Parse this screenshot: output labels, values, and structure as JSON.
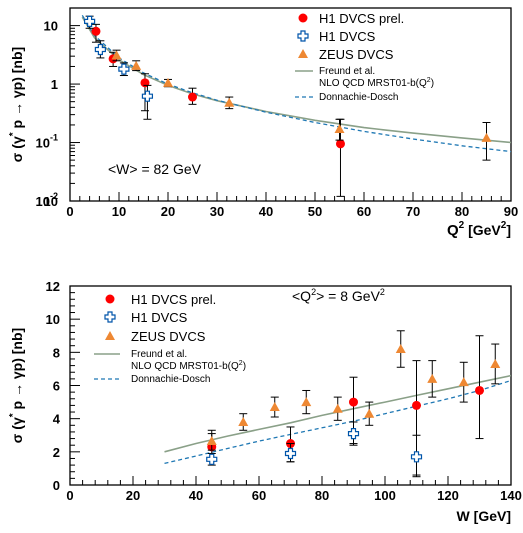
{
  "chart_data": [
    {
      "type": "scatter",
      "xlabel": "Q",
      "xlabel_sup": "2",
      "xlabel_unit": "[GeV",
      "xlabel_unit_sup": "2",
      "xlabel_unit_close": "]",
      "ylabel": "σ (γ p → γp) [nb]",
      "ylabel_star": "*",
      "xlim": [
        0,
        90
      ],
      "ylim": [
        0.01,
        20
      ],
      "yscale": "log",
      "xticks": [
        0,
        10,
        20,
        30,
        40,
        50,
        60,
        70,
        80,
        90
      ],
      "xtick_labels": [
        "0",
        "10",
        "20",
        "30",
        "40",
        "50",
        "60",
        "70",
        "80",
        "90"
      ],
      "yticks": [
        {
          "base": "10",
          "exp": "",
          "value": 10
        },
        {
          "base": "1",
          "exp": "",
          "value": 1
        },
        {
          "base": "10",
          "exp": "-1",
          "value": 0.1
        },
        {
          "base": "10",
          "exp": "-2",
          "value": 0.01
        }
      ],
      "ytick_bottom": {
        "base": "10",
        "exp": "",
        "value": 0.01
      },
      "annotation": "<W> = 82 GeV",
      "legend_position": "top-right",
      "series": [
        {
          "name": "H1 DVCS prel.",
          "marker": "circle",
          "color": "#ff0000",
          "points": [
            {
              "x": 5.3,
              "y": 8.0,
              "lo": 5.2,
              "hi": 10.5
            },
            {
              "x": 8.8,
              "y": 2.7,
              "lo": 2.0,
              "hi": 3.5
            },
            {
              "x": 15.3,
              "y": 1.05,
              "lo": 0.35,
              "hi": 1.5
            },
            {
              "x": 25.0,
              "y": 0.6,
              "lo": 0.45,
              "hi": 0.85
            },
            {
              "x": 55.2,
              "y": 0.095,
              "lo": 0.012,
              "hi": 0.25
            }
          ]
        },
        {
          "name": "H1 DVCS",
          "marker": "cross",
          "color": "#0055aa",
          "points": [
            {
              "x": 4.0,
              "y": 11.8,
              "lo": 9.0,
              "hi": 14.5
            },
            {
              "x": 6.2,
              "y": 3.9,
              "lo": 2.8,
              "hi": 5.5
            },
            {
              "x": 11.0,
              "y": 1.8,
              "lo": 1.4,
              "hi": 2.3
            },
            {
              "x": 15.8,
              "y": 0.62,
              "lo": 0.25,
              "hi": 0.95
            }
          ]
        },
        {
          "name": "ZEUS DVCS",
          "marker": "triangle",
          "color": "#ee8833",
          "points": [
            {
              "x": 9.5,
              "y": 3.1,
              "lo": 2.5,
              "hi": 3.8
            },
            {
              "x": 13.5,
              "y": 2.05,
              "lo": 1.7,
              "hi": 2.5
            },
            {
              "x": 20.0,
              "y": 1.05,
              "lo": 0.9,
              "hi": 1.2
            },
            {
              "x": 32.5,
              "y": 0.48,
              "lo": 0.38,
              "hi": 0.6
            },
            {
              "x": 55.0,
              "y": 0.17,
              "lo": 0.11,
              "hi": 0.25
            },
            {
              "x": 85.0,
              "y": 0.12,
              "lo": 0.05,
              "hi": 0.22
            }
          ]
        }
      ],
      "curves": [
        {
          "name": "Freund et al.",
          "name2": "NLO QCD MRST01-b(Q",
          "name2_sup": "2",
          "name2_close": ")",
          "style": "solid",
          "color": "#8aa088",
          "x": [
            2.5,
            5,
            10,
            15,
            20,
            25,
            30,
            40,
            50,
            60,
            70,
            80,
            90
          ],
          "y": [
            14,
            6.2,
            2.6,
            1.45,
            0.95,
            0.68,
            0.52,
            0.34,
            0.24,
            0.18,
            0.145,
            0.12,
            0.1
          ]
        },
        {
          "name": "Donnachie-Dosch",
          "style": "dashed",
          "color": "#1f78b4",
          "x": [
            2.5,
            5,
            10,
            15,
            20,
            25,
            30,
            40,
            50,
            60,
            70,
            80,
            90
          ],
          "y": [
            15,
            6.8,
            2.8,
            1.55,
            1.0,
            0.71,
            0.53,
            0.33,
            0.22,
            0.155,
            0.115,
            0.088,
            0.07
          ]
        }
      ]
    },
    {
      "type": "scatter",
      "xlabel": "W [GeV]",
      "ylabel": "σ (γ p → γp) [nb]",
      "ylabel_star": "*",
      "xlim": [
        0,
        140
      ],
      "ylim": [
        0,
        12
      ],
      "yscale": "linear",
      "xticks": [
        0,
        20,
        40,
        60,
        80,
        100,
        120,
        140
      ],
      "xtick_labels": [
        "0",
        "20",
        "40",
        "60",
        "80",
        "100",
        "120",
        "140"
      ],
      "yticks_values": [
        0,
        2,
        4,
        6,
        8,
        10,
        12
      ],
      "ytick_labels": [
        "0",
        "2",
        "4",
        "6",
        "8",
        "10",
        "12"
      ],
      "annotation": "<Q",
      "annotation_sup": "2",
      "annotation_rest": "> = 8 GeV",
      "annotation_sup2": "2",
      "legend_position": "top-left",
      "series": [
        {
          "name": "H1 DVCS prel.",
          "marker": "circle",
          "color": "#ff0000",
          "points": [
            {
              "x": 45,
              "y": 2.3,
              "lo": 1.5,
              "hi": 3.1
            },
            {
              "x": 70,
              "y": 2.5,
              "lo": 1.4,
              "hi": 3.5
            },
            {
              "x": 90,
              "y": 5.0,
              "lo": 2.5,
              "hi": 6.5
            },
            {
              "x": 110,
              "y": 4.8,
              "lo": 0.5,
              "hi": 7.5
            },
            {
              "x": 130,
              "y": 5.7,
              "lo": 2.8,
              "hi": 9.0
            }
          ]
        },
        {
          "name": "H1 DVCS",
          "marker": "cross",
          "color": "#0055aa",
          "points": [
            {
              "x": 45,
              "y": 1.55,
              "lo": 1.2,
              "hi": 1.9
            },
            {
              "x": 70,
              "y": 1.9,
              "lo": 1.4,
              "hi": 2.5
            },
            {
              "x": 90,
              "y": 3.1,
              "lo": 2.4,
              "hi": 3.8
            },
            {
              "x": 110,
              "y": 1.7,
              "lo": 0.6,
              "hi": 3.0
            }
          ]
        },
        {
          "name": "ZEUS DVCS",
          "marker": "triangle",
          "color": "#ee8833",
          "points": [
            {
              "x": 45,
              "y": 2.65,
              "lo": 2.1,
              "hi": 3.3
            },
            {
              "x": 55,
              "y": 3.8,
              "lo": 3.3,
              "hi": 4.3
            },
            {
              "x": 65,
              "y": 4.7,
              "lo": 4.1,
              "hi": 5.3
            },
            {
              "x": 75,
              "y": 5.0,
              "lo": 4.3,
              "hi": 5.7
            },
            {
              "x": 85,
              "y": 4.6,
              "lo": 3.9,
              "hi": 5.3
            },
            {
              "x": 95,
              "y": 4.3,
              "lo": 3.6,
              "hi": 5.0
            },
            {
              "x": 105,
              "y": 8.2,
              "lo": 7.1,
              "hi": 9.3
            },
            {
              "x": 115,
              "y": 6.4,
              "lo": 5.3,
              "hi": 7.5
            },
            {
              "x": 125,
              "y": 6.2,
              "lo": 5.0,
              "hi": 7.4
            },
            {
              "x": 135,
              "y": 7.3,
              "lo": 6.1,
              "hi": 8.5
            }
          ]
        }
      ],
      "curves": [
        {
          "name": "Freund et al.",
          "name2": "NLO QCD MRST01-b(Q",
          "name2_sup": "2",
          "name2_close": ")",
          "style": "solid",
          "color": "#8aa088",
          "x": [
            30,
            40,
            50,
            60,
            70,
            80,
            90,
            100,
            110,
            120,
            130,
            140
          ],
          "y": [
            2.0,
            2.5,
            2.95,
            3.35,
            3.75,
            4.2,
            4.6,
            5.0,
            5.4,
            5.8,
            6.2,
            6.6
          ]
        },
        {
          "name": "Donnachie-Dosch",
          "style": "dashed",
          "color": "#1f78b4",
          "x": [
            30,
            40,
            50,
            60,
            70,
            80,
            90,
            100,
            110,
            120,
            130,
            140
          ],
          "y": [
            1.3,
            1.75,
            2.2,
            2.65,
            3.05,
            3.45,
            3.85,
            4.3,
            4.75,
            5.2,
            5.7,
            6.3
          ]
        }
      ]
    }
  ]
}
